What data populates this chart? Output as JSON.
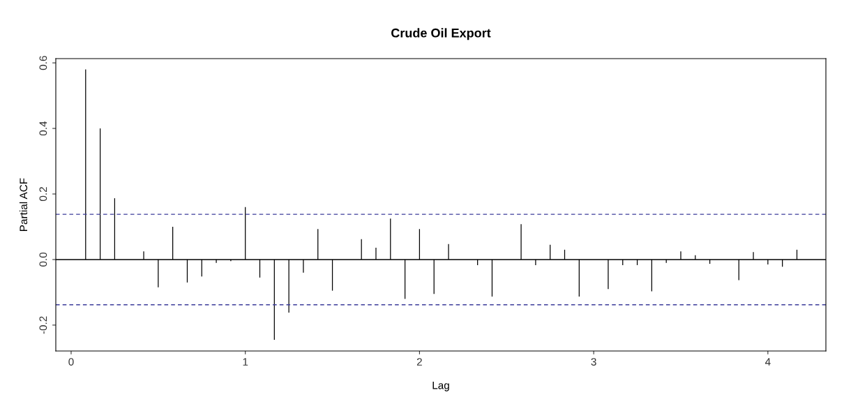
{
  "chart_data": {
    "type": "bar",
    "title": "Crude Oil Export",
    "xlabel": "Lag",
    "ylabel": "Partial ACF",
    "x": [
      0.0833,
      0.1667,
      0.25,
      0.3333,
      0.4167,
      0.5,
      0.5833,
      0.6667,
      0.75,
      0.8333,
      0.9167,
      1.0,
      1.0833,
      1.1667,
      1.25,
      1.3333,
      1.4167,
      1.5,
      1.5833,
      1.6667,
      1.75,
      1.8333,
      1.9167,
      2.0,
      2.0833,
      2.1667,
      2.25,
      2.3333,
      2.4167,
      2.5,
      2.5833,
      2.6667,
      2.75,
      2.8333,
      2.9167,
      3.0,
      3.0833,
      3.1667,
      3.25,
      3.3333,
      3.4167,
      3.5,
      3.5833,
      3.6667,
      3.75,
      3.8333,
      3.9167,
      4.0,
      4.0833,
      4.1667
    ],
    "values": [
      0.58,
      0.4,
      0.187,
      null,
      0.025,
      -0.085,
      0.1,
      -0.07,
      -0.052,
      -0.01,
      -0.005,
      0.16,
      -0.055,
      -0.245,
      -0.162,
      -0.04,
      0.093,
      -0.095,
      null,
      0.062,
      0.036,
      0.125,
      -0.12,
      0.093,
      -0.105,
      0.047,
      null,
      -0.017,
      -0.113,
      0.0,
      0.108,
      -0.017,
      0.045,
      0.03,
      -0.113,
      null,
      -0.09,
      -0.017,
      -0.017,
      -0.097,
      -0.01,
      0.025,
      0.013,
      -0.013,
      null,
      -0.063,
      0.023,
      -0.015,
      -0.022,
      0.03
    ],
    "color": "#000000",
    "xlim": [
      -0.088,
      4.333
    ],
    "ylim": [
      -0.279,
      0.613
    ],
    "xticks": [
      0,
      1,
      2,
      3,
      4
    ],
    "yticks": [
      {
        "value": -0.2,
        "label": "-0.2"
      },
      {
        "value": 0,
        "label": "0.0"
      },
      {
        "value": 0.2,
        "label": "0.2"
      },
      {
        "value": 0.4,
        "label": "0.4"
      },
      {
        "value": 0.6,
        "label": "0.6"
      }
    ],
    "ref_lines": [
      {
        "axis": "y",
        "value": 0,
        "color": "#000000",
        "line_style": "solid"
      },
      {
        "axis": "y",
        "value": 0.138,
        "color": "#3b3b9a",
        "line_style": "dashed"
      },
      {
        "axis": "y",
        "value": -0.138,
        "color": "#3b3b9a",
        "line_style": "dashed"
      }
    ],
    "grid": false
  }
}
